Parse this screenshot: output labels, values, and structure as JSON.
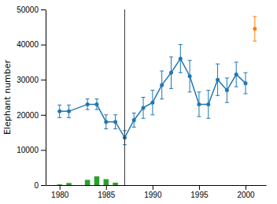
{
  "chart_data": {
    "type": "line",
    "ylabel": "Elephant number",
    "series": [
      {
        "type": "line",
        "marker": "circle",
        "x": [
          1980,
          1981,
          1983,
          1984,
          1985,
          1986,
          1987,
          1988,
          1989,
          1990,
          1991,
          1992,
          1993,
          1994,
          1995,
          1996,
          1997,
          1998,
          1999,
          2000
        ],
        "values": [
          21000,
          21000,
          23000,
          23000,
          18000,
          18000,
          13500,
          18500,
          22000,
          23500,
          28500,
          32000,
          36000,
          31000,
          23000,
          23000,
          30000,
          27000,
          31500,
          29000
        ],
        "errors": [
          1800,
          1800,
          1500,
          1500,
          2000,
          2000,
          2000,
          2000,
          3000,
          3500,
          4000,
          4500,
          4000,
          4500,
          3500,
          4000,
          4500,
          3500,
          3500,
          3000
        ]
      },
      {
        "type": "scatter",
        "marker": "circle",
        "x": [
          2001
        ],
        "values": [
          44500
        ],
        "errors": [
          3500
        ]
      },
      {
        "type": "bar",
        "x": [
          1980,
          1981,
          1983,
          1984,
          1985,
          1986
        ],
        "values": [
          200,
          600,
          1500,
          2500,
          1700,
          700
        ]
      }
    ],
    "vlines": [
      1987
    ],
    "xlim": [
      1978.5,
      2002.2
    ],
    "ylim": [
      0,
      50000
    ],
    "xticks": [
      1980,
      1985,
      1990,
      1995,
      2000
    ],
    "yticks": [
      0,
      10000,
      20000,
      30000,
      40000,
      50000
    ],
    "grid": false
  }
}
